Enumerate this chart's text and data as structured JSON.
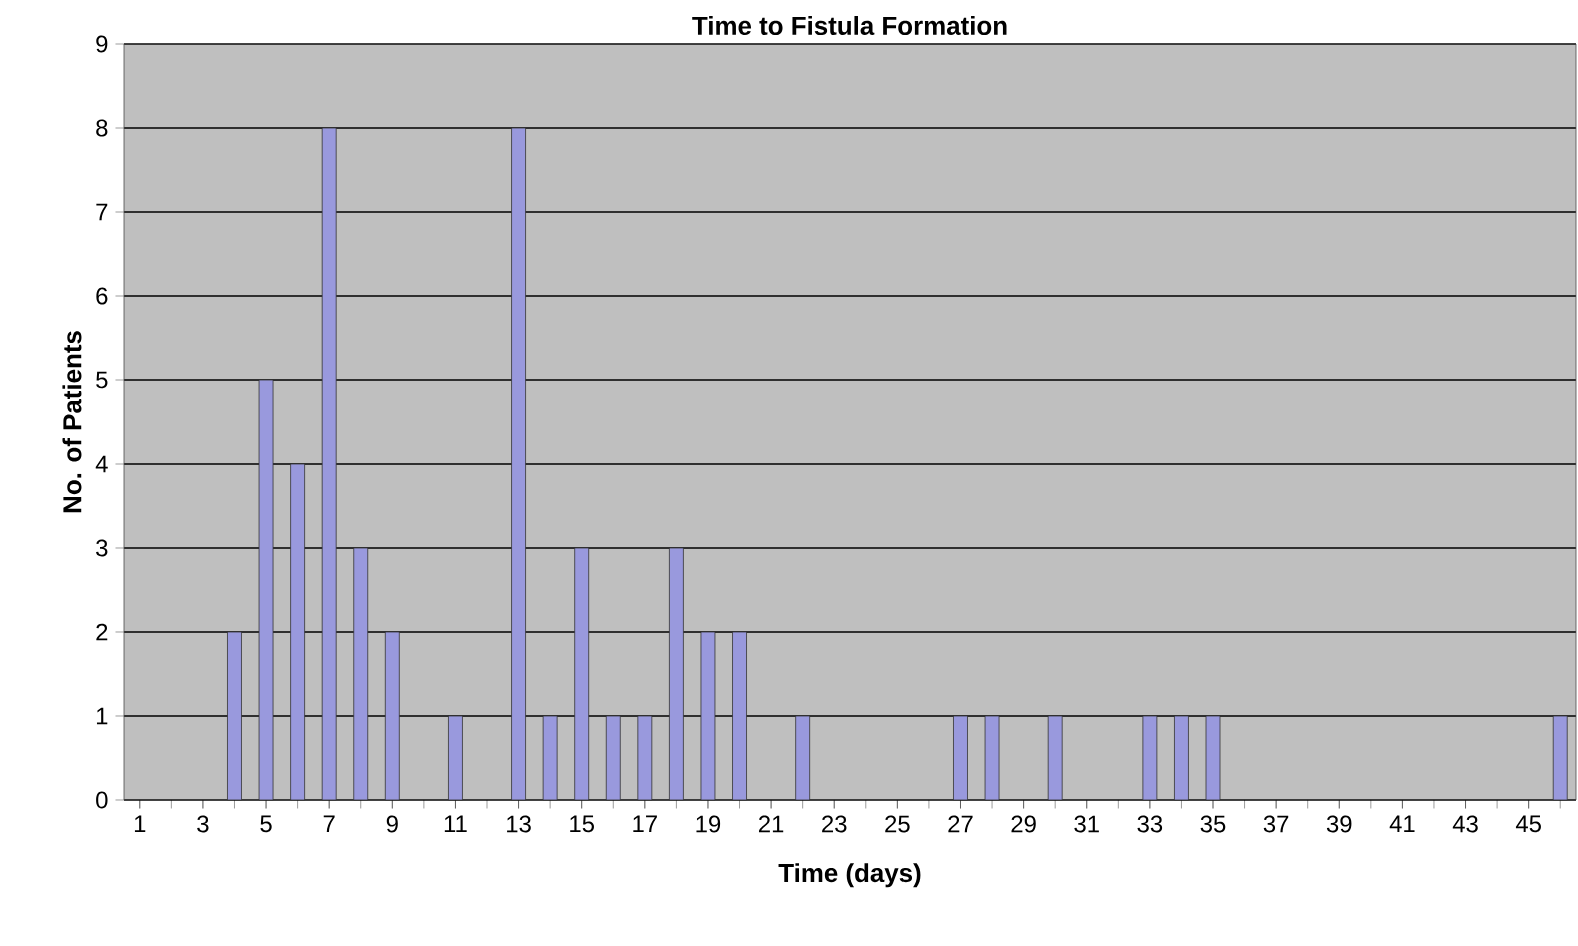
{
  "chart_data": {
    "type": "bar",
    "title": "Time  to Fistula Formation",
    "xlabel": "Time (days)",
    "ylabel": "No. of Patients",
    "categories": [
      "1",
      null,
      "3",
      null,
      "5",
      null,
      "7",
      null,
      "9",
      null,
      "11",
      null,
      "13",
      null,
      "15",
      null,
      "17",
      null,
      "19",
      null,
      "21",
      null,
      "23",
      null,
      "25",
      null,
      "27",
      null,
      "29",
      null,
      "31",
      null,
      "33",
      null,
      "35",
      null,
      "37",
      null,
      "39",
      null,
      "41",
      null,
      "43",
      null,
      "45",
      null
    ],
    "values": [
      0,
      0,
      0,
      2,
      5,
      4,
      8,
      3,
      2,
      0,
      1,
      0,
      8,
      1,
      3,
      1,
      1,
      3,
      2,
      2,
      0,
      1,
      0,
      0,
      0,
      0,
      1,
      1,
      0,
      1,
      0,
      0,
      1,
      1,
      1,
      0,
      0,
      0,
      0,
      0,
      0,
      0,
      0,
      0,
      0,
      1
    ],
    "color": "#9999dd",
    "ylim": [
      0,
      9
    ],
    "yticks": [
      0,
      1,
      2,
      3,
      4,
      5,
      6,
      7,
      8,
      9
    ],
    "grid": "y"
  }
}
